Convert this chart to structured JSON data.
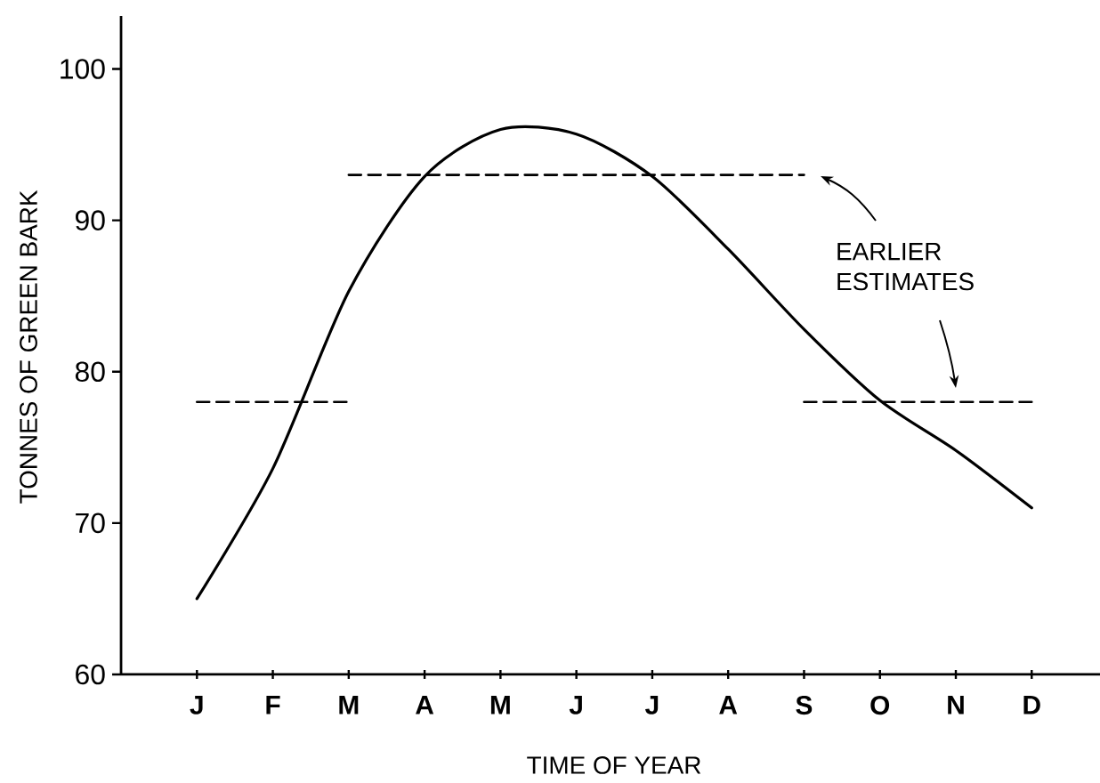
{
  "chart_data": {
    "type": "line",
    "xlabel": "TIME OF YEAR",
    "ylabel": "TONNES OF GREEN BARK",
    "categories": [
      "J",
      "F",
      "M",
      "A",
      "M",
      "J",
      "J",
      "A",
      "S",
      "O",
      "N",
      "D"
    ],
    "series": [
      {
        "color": "#000000",
        "line_style": "solid",
        "values": [
          65.0,
          73.6,
          85.3,
          92.9,
          96.0,
          95.7,
          92.9,
          88.1,
          82.8,
          78.1,
          74.8,
          71.0
        ]
      },
      {
        "color": "#000000",
        "line_style": "dashed",
        "values": [
          78,
          78,
          78,
          null,
          null,
          null,
          null,
          null,
          78,
          78,
          78,
          78
        ]
      },
      {
        "color": "#000000",
        "line_style": "dashed",
        "values": [
          null,
          null,
          93,
          93,
          93,
          93,
          93,
          93,
          93,
          null,
          null,
          null
        ]
      }
    ],
    "ylim": [
      60,
      103.5
    ],
    "yticks": [
      60,
      70,
      80,
      90,
      100
    ],
    "grid": false,
    "marker": "none",
    "annotations": [
      "EARLIER ESTIMATES"
    ]
  }
}
